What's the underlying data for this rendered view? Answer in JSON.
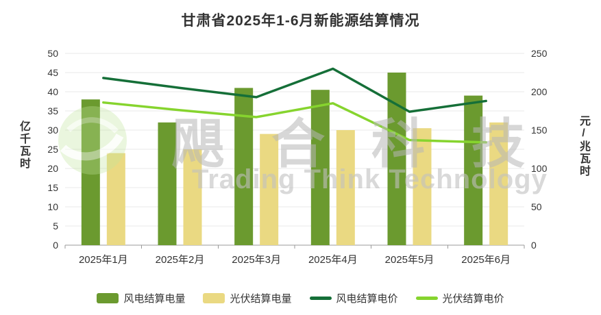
{
  "chart_data": {
    "type": "bar",
    "title": "甘肃省2025年1-6月新能源结算情况",
    "categories": [
      "2025年1月",
      "2025年2月",
      "2025年3月",
      "2025年4月",
      "2025年5月",
      "2025年6月"
    ],
    "left_axis": {
      "label": "亿千瓦时",
      "min": 0,
      "max": 50,
      "step": 5
    },
    "right_axis": {
      "label": "元/兆瓦时",
      "min": 0,
      "max": 250,
      "step": 50
    },
    "grid": true,
    "legend_position": "bottom",
    "series": [
      {
        "name": "风电结算电量",
        "type": "bar",
        "axis": "left",
        "color": "#6b9a2f",
        "values": [
          38,
          32,
          41,
          40.5,
          45,
          39
        ]
      },
      {
        "name": "光伏结算电量",
        "type": "bar",
        "axis": "left",
        "color": "#ead982",
        "values": [
          24,
          25,
          29,
          30,
          30.5,
          32
        ]
      },
      {
        "name": "风电结算电价",
        "type": "line",
        "axis": "right",
        "color": "#156f38",
        "values": [
          218,
          205,
          193,
          230,
          174,
          188
        ]
      },
      {
        "name": "光伏结算电价",
        "type": "line",
        "axis": "right",
        "color": "#86d42e",
        "values": [
          186,
          176,
          167,
          185,
          137,
          134
        ]
      }
    ]
  },
  "watermark": {
    "cn": "飓合科技",
    "en": "Trading Think Technology"
  }
}
